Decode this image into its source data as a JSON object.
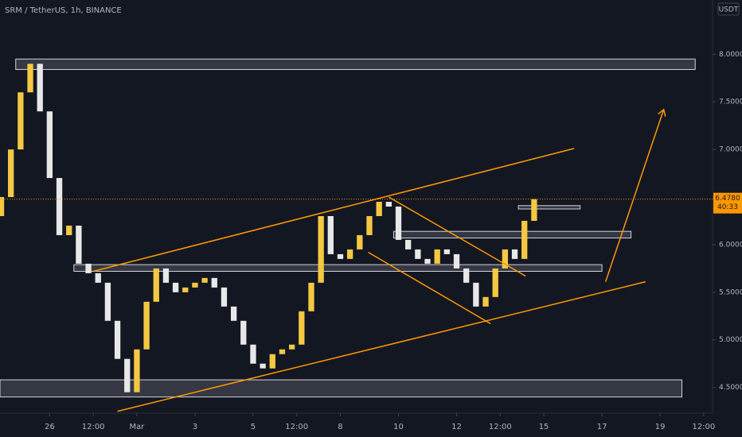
{
  "chart_data": {
    "type": "candlestick",
    "title": "SRM / TetherUS, 1h, BINANCE",
    "currency": "USDT",
    "xlim": [
      -41,
      546
    ],
    "ylim": [
      4.23,
      8.57
    ],
    "yticks": [
      {
        "value": 4.5,
        "label": "4.5000"
      },
      {
        "value": 5,
        "label": "5.0000"
      },
      {
        "value": 5.5,
        "label": "5.5000"
      },
      {
        "value": 6,
        "label": "6.0000"
      },
      {
        "value": 6.5,
        "label": "6.5000"
      },
      {
        "value": 7,
        "label": "7.0000"
      },
      {
        "value": 7.5,
        "label": "7.5000"
      },
      {
        "value": 8,
        "label": "8.0000"
      }
    ],
    "xticks": [
      {
        "value": 0,
        "label": "26"
      },
      {
        "value": 36,
        "label": "12:00"
      },
      {
        "value": 72,
        "label": "Mar"
      },
      {
        "value": 120,
        "label": "3"
      },
      {
        "value": 168,
        "label": "5"
      },
      {
        "value": 204,
        "label": "12:00"
      },
      {
        "value": 240,
        "label": "8"
      },
      {
        "value": 288,
        "label": "10"
      },
      {
        "value": 336,
        "label": "12"
      },
      {
        "value": 372,
        "label": "12:00"
      },
      {
        "value": 408,
        "label": "15"
      },
      {
        "value": 456,
        "label": "17"
      },
      {
        "value": 504,
        "label": "19"
      },
      {
        "value": 540,
        "label": "12:00"
      }
    ],
    "up_color": "#f5c842",
    "down_color": "#e8e8e8",
    "series": [
      {
        "x": [
          -40,
          -32,
          -24,
          -16,
          -8,
          0,
          8,
          16,
          24,
          32,
          40,
          48,
          56,
          64,
          72,
          80,
          88,
          96,
          104,
          112,
          120,
          128,
          136,
          144,
          152,
          160,
          168,
          176,
          184,
          192,
          200,
          208,
          216,
          224,
          232,
          240,
          248,
          256,
          264,
          272,
          280,
          288,
          296,
          304,
          312,
          320,
          328,
          336,
          344,
          352,
          360,
          368,
          376,
          384,
          392,
          400
        ],
        "open": [
          6.3,
          6.5,
          7.0,
          7.6,
          7.9,
          7.4,
          6.7,
          6.1,
          6.2,
          5.8,
          5.7,
          5.6,
          5.2,
          4.8,
          4.45,
          4.9,
          5.4,
          5.75,
          5.6,
          5.5,
          5.55,
          5.6,
          5.65,
          5.55,
          5.35,
          5.2,
          4.95,
          4.75,
          4.7,
          4.85,
          4.9,
          4.95,
          5.3,
          5.6,
          6.3,
          5.9,
          5.85,
          5.95,
          6.1,
          6.3,
          6.45,
          6.4,
          6.05,
          5.95,
          5.85,
          5.8,
          5.95,
          5.9,
          5.75,
          5.6,
          5.35,
          5.45,
          5.75,
          5.95,
          5.85,
          6.25
        ],
        "close": [
          6.5,
          7.0,
          7.6,
          7.9,
          7.4,
          6.7,
          6.1,
          6.2,
          5.8,
          5.7,
          5.6,
          5.2,
          4.8,
          4.45,
          4.9,
          5.4,
          5.75,
          5.6,
          5.5,
          5.55,
          5.6,
          5.65,
          5.55,
          5.35,
          5.2,
          4.95,
          4.75,
          4.7,
          4.85,
          4.9,
          4.95,
          5.3,
          5.6,
          6.3,
          5.9,
          5.85,
          5.95,
          6.1,
          6.3,
          6.45,
          6.4,
          6.05,
          5.95,
          5.85,
          5.8,
          5.95,
          5.9,
          5.75,
          5.6,
          5.35,
          5.45,
          5.75,
          5.95,
          5.85,
          6.25,
          6.478
        ]
      }
    ],
    "zones": [
      {
        "x": [
          -28,
          533
        ],
        "y": [
          7.84,
          7.95
        ]
      },
      {
        "x": [
          20,
          456
        ],
        "y": [
          5.72,
          5.79
        ]
      },
      {
        "x": [
          284,
          480
        ],
        "y": [
          6.07,
          6.14
        ]
      },
      {
        "x": [
          387,
          438
        ],
        "y": [
          6.375,
          6.41
        ]
      },
      {
        "x": [
          -41,
          522
        ],
        "y": [
          4.4,
          4.58
        ]
      }
    ],
    "zone_color": "#d1d4dc",
    "trendlines": [
      {
        "x": [
          36,
          433
        ],
        "y": [
          5.72,
          7.01
        ]
      },
      {
        "x": [
          56,
          492
        ],
        "y": [
          4.25,
          5.61
        ]
      },
      {
        "x": [
          263,
          364
        ],
        "y": [
          5.92,
          5.17
        ]
      },
      {
        "x": [
          280,
          393
        ],
        "y": [
          6.5,
          5.67
        ]
      }
    ],
    "arrow": {
      "x": [
        459,
        507
      ],
      "y": [
        5.61,
        7.42
      ]
    },
    "line_color": "#ff9800",
    "last_price": {
      "value": 6.478,
      "label": "6.4780"
    },
    "countdown": "40:33"
  }
}
